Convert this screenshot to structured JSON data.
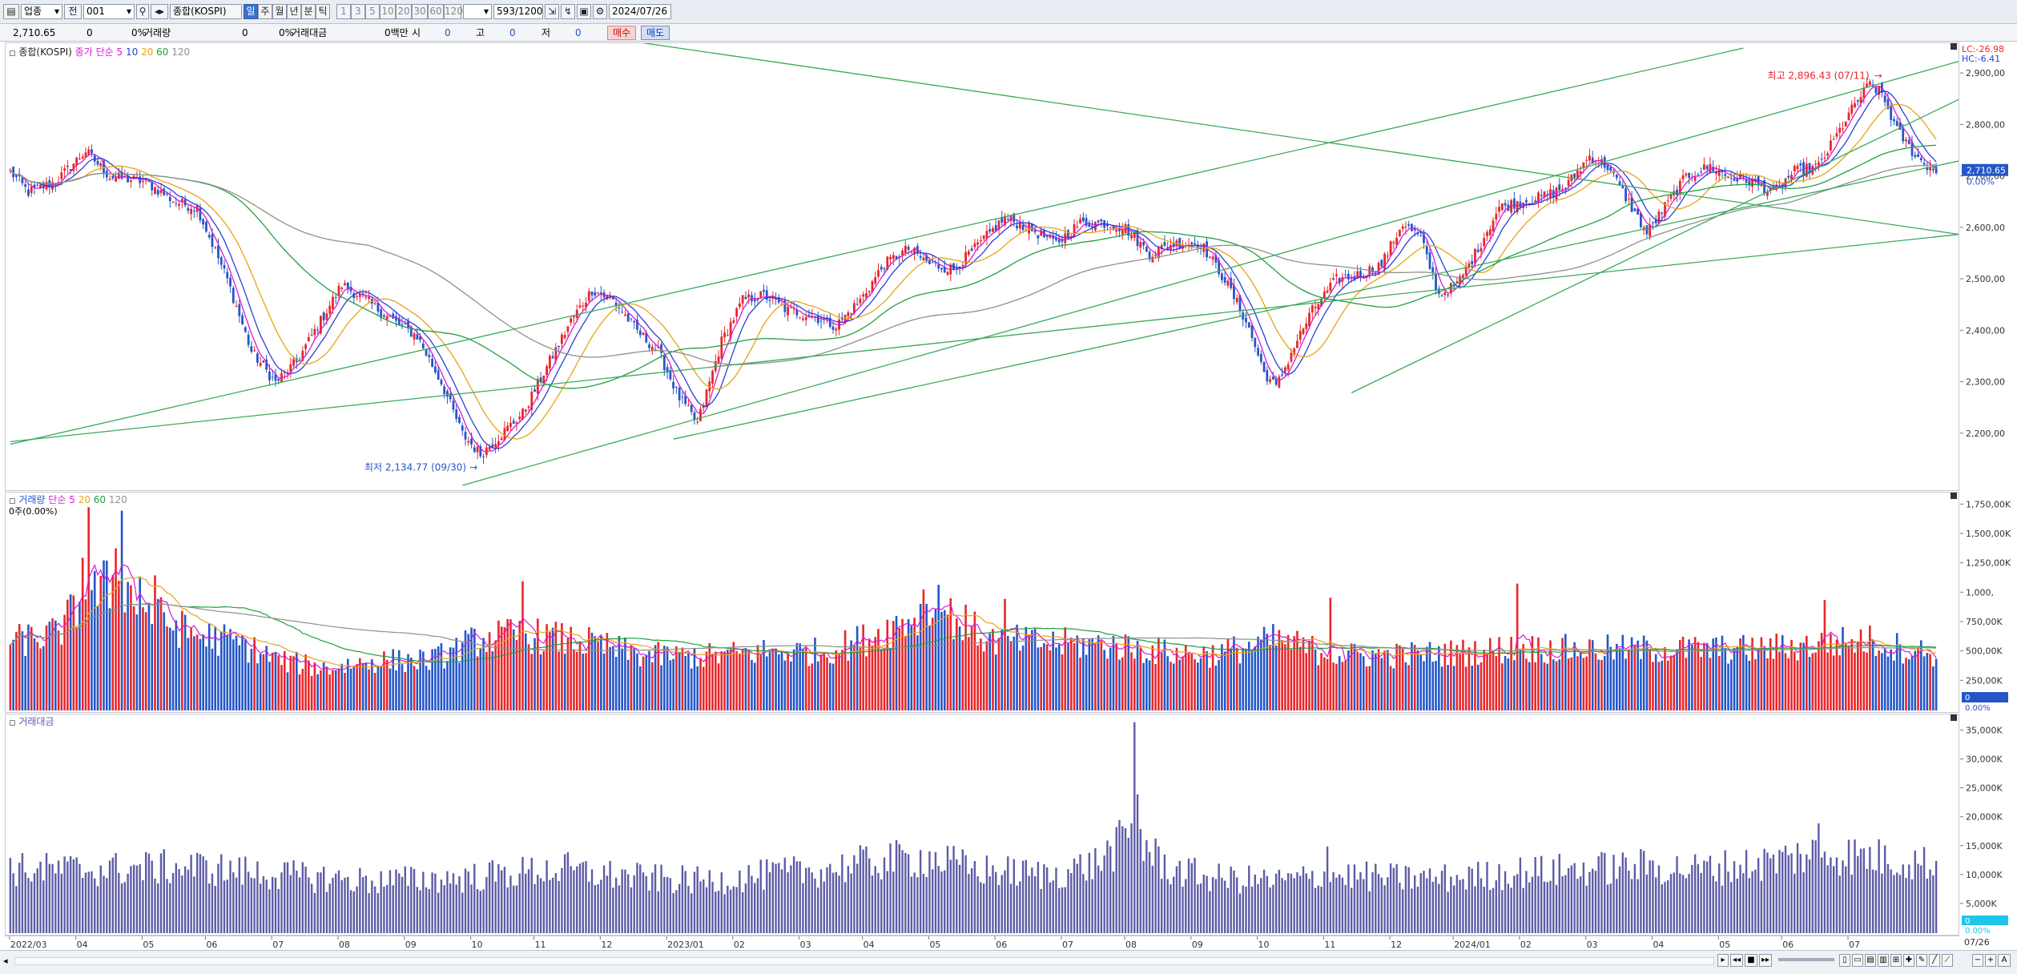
{
  "toolbar": {
    "category": "업종",
    "all_label": "전",
    "code": "001",
    "index_name": "종합(KOSPI)",
    "periods": [
      "일",
      "주",
      "월",
      "년",
      "분",
      "틱"
    ],
    "active_period": "일",
    "intervals": [
      "1",
      "3",
      "5",
      "10",
      "20",
      "30",
      "60",
      "120"
    ],
    "count": "593",
    "total": "/1200",
    "date": "2024/07/26"
  },
  "info_bar": {
    "price": "2,710.65",
    "volume_value": "0",
    "volume_change": "0%",
    "volume_label": "거래량",
    "amount_value": "0",
    "amount_change": "0%",
    "amount_label": "거래대금",
    "amount_unit": "0백만",
    "open_label": "시",
    "open_value": "0",
    "high_label": "고",
    "high_value": "0",
    "low_label": "저",
    "low_value": "0",
    "buy_label": "매수",
    "sell_label": "매도"
  },
  "colors": {
    "up": "#e8262b",
    "down": "#2456c8",
    "ma5": "#d71ad7",
    "ma10": "#2a3fd8",
    "ma20": "#e8a315",
    "ma60": "#20a040",
    "ma120": "#8f8f8f",
    "trend": "#3aaa5a",
    "amount_bar": "#5c5ca6",
    "current_tag": "#2456c8"
  },
  "price_pane": {
    "title": "종합(KOSPI)",
    "legend_prefix": "종가 단순",
    "ma_labels": [
      "5",
      "10",
      "20",
      "60",
      "120"
    ],
    "lc": "LC:-26.98",
    "hc": "HC:-6.41",
    "current_price": "2,710.65",
    "current_pct": "0.00%",
    "high_annotation": "최고 2,896.43 (07/11)",
    "low_annotation": "최저 2,134.77 (09/30)"
  },
  "volume_pane": {
    "title": "거래량",
    "legend_prefix": "단순",
    "ma_labels": [
      "5",
      "20",
      "60",
      "120"
    ],
    "sub_label": "0주(0.00%)",
    "current_value": "0",
    "current_pct": "0.00%"
  },
  "amount_pane": {
    "title": "거래대금",
    "current_value": "0",
    "current_pct": "0.00%"
  },
  "chart_data": [
    {
      "type": "candlestick",
      "title": "종합(KOSPI)",
      "ylim": [
        2100,
        2950
      ],
      "yticks": [
        2200,
        2300,
        2400,
        2500,
        2600,
        2700,
        2800,
        2900
      ],
      "ytick_labels": [
        "2,200,00",
        "2,300,00",
        "2,400,00",
        "2,500,00",
        "2,600,00",
        "2,700,00",
        "2,800,00",
        "2,900,00"
      ],
      "x_labels": [
        "2022/03",
        "04",
        "05",
        "06",
        "07",
        "08",
        "09",
        "10",
        "11",
        "12",
        "2023/01",
        "02",
        "03",
        "04",
        "05",
        "06",
        "07",
        "08",
        "09",
        "10",
        "11",
        "12",
        "2024/01",
        "02",
        "03",
        "04",
        "05",
        "06",
        "07"
      ],
      "x_end_label": "07/26",
      "close_anchors": [
        [
          0,
          2710
        ],
        [
          6,
          2670
        ],
        [
          15,
          2690
        ],
        [
          25,
          2750
        ],
        [
          33,
          2700
        ],
        [
          45,
          2690
        ],
        [
          55,
          2650
        ],
        [
          62,
          2640
        ],
        [
          72,
          2500
        ],
        [
          80,
          2360
        ],
        [
          88,
          2300
        ],
        [
          95,
          2340
        ],
        [
          103,
          2420
        ],
        [
          110,
          2490
        ],
        [
          118,
          2460
        ],
        [
          127,
          2420
        ],
        [
          135,
          2390
        ],
        [
          143,
          2300
        ],
        [
          150,
          2200
        ],
        [
          156,
          2160
        ],
        [
          163,
          2200
        ],
        [
          170,
          2240
        ],
        [
          178,
          2330
        ],
        [
          186,
          2420
        ],
        [
          193,
          2480
        ],
        [
          200,
          2460
        ],
        [
          208,
          2400
        ],
        [
          215,
          2360
        ],
        [
          222,
          2270
        ],
        [
          228,
          2220
        ],
        [
          236,
          2380
        ],
        [
          243,
          2460
        ],
        [
          250,
          2470
        ],
        [
          258,
          2440
        ],
        [
          266,
          2430
        ],
        [
          274,
          2410
        ],
        [
          282,
          2460
        ],
        [
          290,
          2530
        ],
        [
          298,
          2560
        ],
        [
          305,
          2530
        ],
        [
          313,
          2520
        ],
        [
          320,
          2560
        ],
        [
          330,
          2620
        ],
        [
          338,
          2600
        ],
        [
          347,
          2570
        ],
        [
          355,
          2610
        ],
        [
          363,
          2610
        ],
        [
          370,
          2600
        ],
        [
          378,
          2550
        ],
        [
          386,
          2570
        ],
        [
          395,
          2570
        ],
        [
          403,
          2500
        ],
        [
          410,
          2420
        ],
        [
          416,
          2320
        ],
        [
          420,
          2290
        ],
        [
          426,
          2370
        ],
        [
          432,
          2440
        ],
        [
          440,
          2500
        ],
        [
          448,
          2510
        ],
        [
          455,
          2530
        ],
        [
          462,
          2610
        ],
        [
          468,
          2580
        ],
        [
          474,
          2470
        ],
        [
          480,
          2490
        ],
        [
          486,
          2550
        ],
        [
          494,
          2640
        ],
        [
          500,
          2650
        ],
        [
          508,
          2660
        ],
        [
          516,
          2680
        ],
        [
          524,
          2740
        ],
        [
          530,
          2720
        ],
        [
          538,
          2640
        ],
        [
          543,
          2590
        ],
        [
          550,
          2650
        ],
        [
          556,
          2700
        ],
        [
          564,
          2720
        ],
        [
          570,
          2700
        ],
        [
          578,
          2690
        ],
        [
          585,
          2670
        ],
        [
          592,
          2710
        ],
        [
          600,
          2720
        ],
        [
          606,
          2780
        ],
        [
          612,
          2840
        ],
        [
          617,
          2880
        ],
        [
          621,
          2860
        ],
        [
          626,
          2790
        ],
        [
          631,
          2750
        ],
        [
          634,
          2730
        ],
        [
          639,
          2710
        ]
      ],
      "annotations": [
        {
          "text": "최고 2,896.43 (07/11)",
          "x_index": 620,
          "y": 2896.43
        },
        {
          "text": "최저 2,134.77 (09/30)",
          "x_index": 155,
          "y": 2134.77
        }
      ],
      "series": [
        {
          "name": "5",
          "kind": "moving_average"
        },
        {
          "name": "10",
          "kind": "moving_average"
        },
        {
          "name": "20",
          "kind": "moving_average"
        },
        {
          "name": "60",
          "kind": "moving_average"
        },
        {
          "name": "120",
          "kind": "moving_average"
        }
      ],
      "trendlines": [
        {
          "from": [
            0,
            2180
          ],
          "to": [
            575,
            2950
          ]
        },
        {
          "from": [
            150,
            2100
          ],
          "to": [
            650,
            2930
          ]
        },
        {
          "from": [
            220,
            2190
          ],
          "to": [
            650,
            2735
          ]
        },
        {
          "from": [
            0,
            2185
          ],
          "to": [
            650,
            2590
          ]
        },
        {
          "from": [
            210,
            2960
          ],
          "to": [
            650,
            2585
          ]
        },
        {
          "from": [
            445,
            2280
          ],
          "to": [
            650,
            2860
          ]
        }
      ]
    },
    {
      "type": "bar",
      "title": "거래량",
      "ylim": [
        0,
        1800
      ],
      "yticks": [
        250,
        500,
        750,
        1000,
        1250,
        1500,
        1750
      ],
      "ytick_labels": [
        "250,00K",
        "500,00K",
        "750,00K",
        "1,000,",
        "1,250,00K",
        "1,500,00K",
        "1,750,00K"
      ],
      "level_anchors": [
        [
          0,
          580
        ],
        [
          15,
          650
        ],
        [
          25,
          950
        ],
        [
          35,
          1100
        ],
        [
          45,
          850
        ],
        [
          60,
          650
        ],
        [
          75,
          580
        ],
        [
          90,
          420
        ],
        [
          105,
          360
        ],
        [
          120,
          420
        ],
        [
          140,
          430
        ],
        [
          155,
          600
        ],
        [
          170,
          650
        ],
        [
          190,
          580
        ],
        [
          210,
          470
        ],
        [
          230,
          460
        ],
        [
          250,
          500
        ],
        [
          270,
          500
        ],
        [
          285,
          620
        ],
        [
          300,
          800
        ],
        [
          310,
          840
        ],
        [
          325,
          600
        ],
        [
          345,
          570
        ],
        [
          365,
          560
        ],
        [
          385,
          490
        ],
        [
          400,
          480
        ],
        [
          420,
          600
        ],
        [
          440,
          470
        ],
        [
          460,
          470
        ],
        [
          480,
          490
        ],
        [
          500,
          530
        ],
        [
          520,
          520
        ],
        [
          540,
          520
        ],
        [
          560,
          520
        ],
        [
          580,
          520
        ],
        [
          600,
          560
        ],
        [
          615,
          600
        ],
        [
          630,
          520
        ],
        [
          639,
          480
        ]
      ],
      "peaks": [
        [
          24,
          1300
        ],
        [
          26,
          1730
        ],
        [
          35,
          1380
        ],
        [
          37,
          1700
        ],
        [
          43,
          1130
        ],
        [
          48,
          1150
        ],
        [
          170,
          1100
        ],
        [
          303,
          1030
        ],
        [
          308,
          1070
        ],
        [
          330,
          950
        ],
        [
          438,
          960
        ],
        [
          500,
          1080
        ],
        [
          602,
          940
        ]
      ],
      "series": [
        {
          "name": "5",
          "kind": "moving_average"
        },
        {
          "name": "20",
          "kind": "moving_average"
        },
        {
          "name": "60",
          "kind": "moving_average"
        },
        {
          "name": "120",
          "kind": "moving_average"
        }
      ]
    },
    {
      "type": "bar",
      "title": "거래대금",
      "ylim": [
        0,
        37000
      ],
      "yticks": [
        5000,
        10000,
        15000,
        20000,
        25000,
        30000,
        35000
      ],
      "ytick_labels": [
        "5,000K",
        "10,000K",
        "15,000K",
        "20,000K",
        "25,000K",
        "30,000K",
        "35,000K"
      ],
      "level_anchors": [
        [
          0,
          11000
        ],
        [
          30,
          11000
        ],
        [
          60,
          11500
        ],
        [
          90,
          10000
        ],
        [
          120,
          9000
        ],
        [
          150,
          9500
        ],
        [
          180,
          11000
        ],
        [
          210,
          9500
        ],
        [
          230,
          9000
        ],
        [
          250,
          10000
        ],
        [
          270,
          11000
        ],
        [
          290,
          12500
        ],
        [
          305,
          13000
        ],
        [
          320,
          11000
        ],
        [
          345,
          10000
        ],
        [
          360,
          12000
        ],
        [
          372,
          17000
        ],
        [
          378,
          14000
        ],
        [
          385,
          11000
        ],
        [
          400,
          9500
        ],
        [
          420,
          9000
        ],
        [
          440,
          10000
        ],
        [
          460,
          9500
        ],
        [
          480,
          9500
        ],
        [
          500,
          10500
        ],
        [
          520,
          11000
        ],
        [
          540,
          11500
        ],
        [
          560,
          11000
        ],
        [
          580,
          12000
        ],
        [
          600,
          14000
        ],
        [
          620,
          13000
        ],
        [
          639,
          12000
        ]
      ],
      "peaks": [
        [
          372,
          19000
        ],
        [
          373,
          36500
        ],
        [
          374,
          24000
        ],
        [
          375,
          18000
        ],
        [
          600,
          19000
        ],
        [
          437,
          15000
        ],
        [
          185,
          14000
        ]
      ]
    }
  ]
}
